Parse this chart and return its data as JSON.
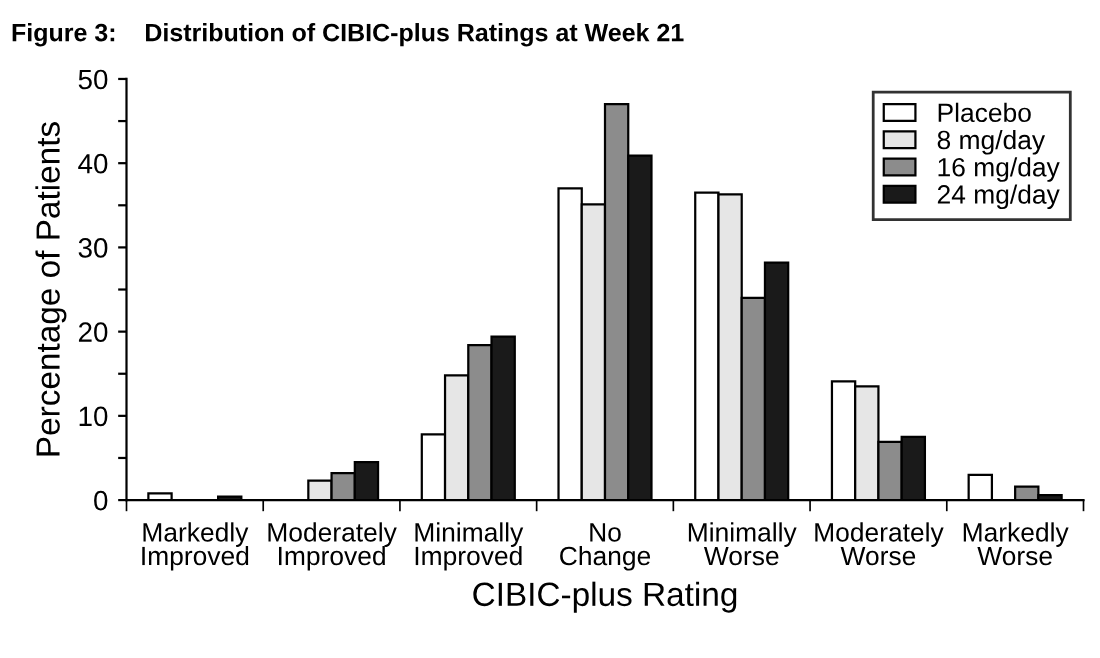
{
  "chart_data": {
    "type": "bar",
    "title": "Figure 3:    Distribution of CIBIC-plus Ratings at Week 21",
    "xlabel": "CIBIC-plus Rating",
    "ylabel": "Percentage of Patients",
    "categories": [
      "Markedly\nImproved",
      "Moderately\nImproved",
      "Minimally\nImproved",
      "No\nChange",
      "Minimally\nWorse",
      "Moderately\nWorse",
      "Markedly\nWorse"
    ],
    "series": [
      {
        "name": "Placebo",
        "color": "#ffffff",
        "values": [
          0.8,
          0,
          7.8,
          37.0,
          36.5,
          14.1,
          3.0
        ]
      },
      {
        "name": "8 mg/day",
        "color": "#e6e6e6",
        "values": [
          0,
          2.3,
          14.8,
          35.1,
          36.3,
          13.5,
          0
        ]
      },
      {
        "name": "16 mg/day",
        "color": "#8c8c8c",
        "values": [
          0,
          3.2,
          18.4,
          47.0,
          24.0,
          6.9,
          1.6
        ]
      },
      {
        "name": "24 mg/day",
        "color": "#1a1a1a",
        "values": [
          0.4,
          4.5,
          19.4,
          40.9,
          28.2,
          7.5,
          0.6
        ]
      }
    ],
    "ylim": [
      0,
      50
    ],
    "yticks": [
      0,
      {
        "value": 5,
        "label": null
      },
      10,
      {
        "value": 15,
        "label": null
      },
      20,
      {
        "value": 25,
        "label": null
      },
      30,
      {
        "value": 35,
        "label": null
      },
      40,
      {
        "value": 45,
        "label": null
      },
      50
    ],
    "grid": false,
    "legend": "top right"
  }
}
